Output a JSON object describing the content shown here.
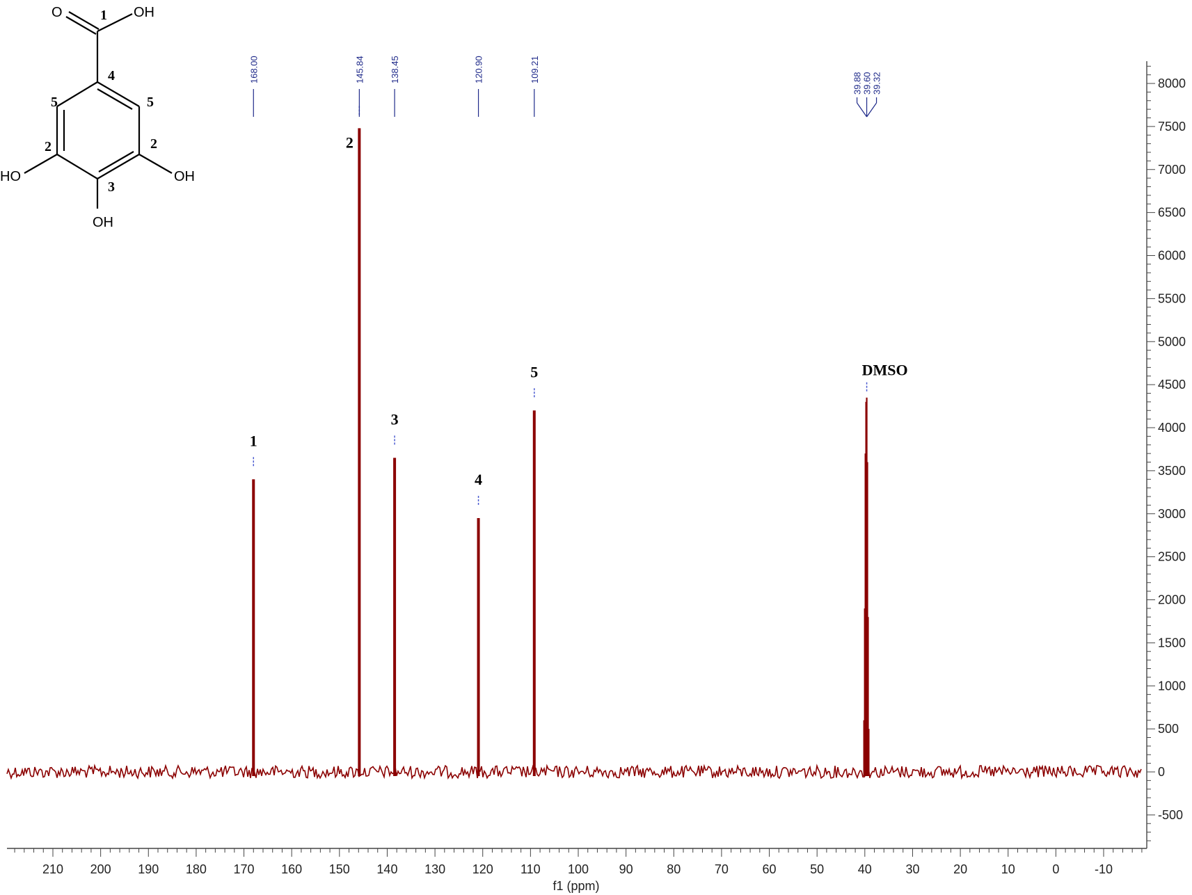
{
  "chart_data": {
    "type": "line",
    "xlabel": "f1 (ppm)",
    "xlim": [
      219.5,
      -19.5
    ],
    "ylim": [
      -860,
      8250
    ],
    "x_ticks": [
      210,
      200,
      190,
      180,
      170,
      160,
      150,
      140,
      130,
      120,
      110,
      100,
      90,
      80,
      70,
      60,
      50,
      40,
      30,
      20,
      10,
      0,
      -10
    ],
    "y_ticks": [
      8000,
      7500,
      7000,
      6500,
      6000,
      5500,
      5000,
      4500,
      4000,
      3500,
      3000,
      2500,
      2000,
      1500,
      1000,
      500,
      0,
      -500
    ],
    "line_color": "#8b0000",
    "peaks": [
      {
        "ppm": 168.0,
        "height": 3400,
        "label": "1"
      },
      {
        "ppm": 145.84,
        "height": 7480,
        "label": "2"
      },
      {
        "ppm": 138.45,
        "height": 3650,
        "label": "3"
      },
      {
        "ppm": 120.9,
        "height": 2950,
        "label": "4"
      },
      {
        "ppm": 109.21,
        "height": 4200,
        "label": "5"
      }
    ],
    "solvent": {
      "label": "DMSO",
      "peaks": [
        {
          "ppm": 40.17,
          "height": 600
        },
        {
          "ppm": 40.02,
          "height": 1900
        },
        {
          "ppm": 39.88,
          "height": 3700
        },
        {
          "ppm": 39.74,
          "height": 4300
        },
        {
          "ppm": 39.6,
          "height": 4350
        },
        {
          "ppm": 39.46,
          "height": 3600
        },
        {
          "ppm": 39.32,
          "height": 1800
        },
        {
          "ppm": 39.18,
          "height": 500
        }
      ]
    },
    "peak_picks": [
      "168.00",
      "145.84",
      "138.45",
      "120.90",
      "109.21"
    ],
    "solvent_picks": [
      "39.88",
      "39.60",
      "39.32"
    ]
  },
  "structure": {
    "atoms": {
      "o_carbonyl": "O",
      "oh_acid": "OH",
      "oh_left": "HO",
      "oh_right": "OH",
      "oh_bottom": "OH"
    },
    "numbers": {
      "c1": "1",
      "c4": "4",
      "c5_left": "5",
      "c5_right": "5",
      "c2_left": "2",
      "c2_right": "2",
      "c3": "3"
    }
  }
}
